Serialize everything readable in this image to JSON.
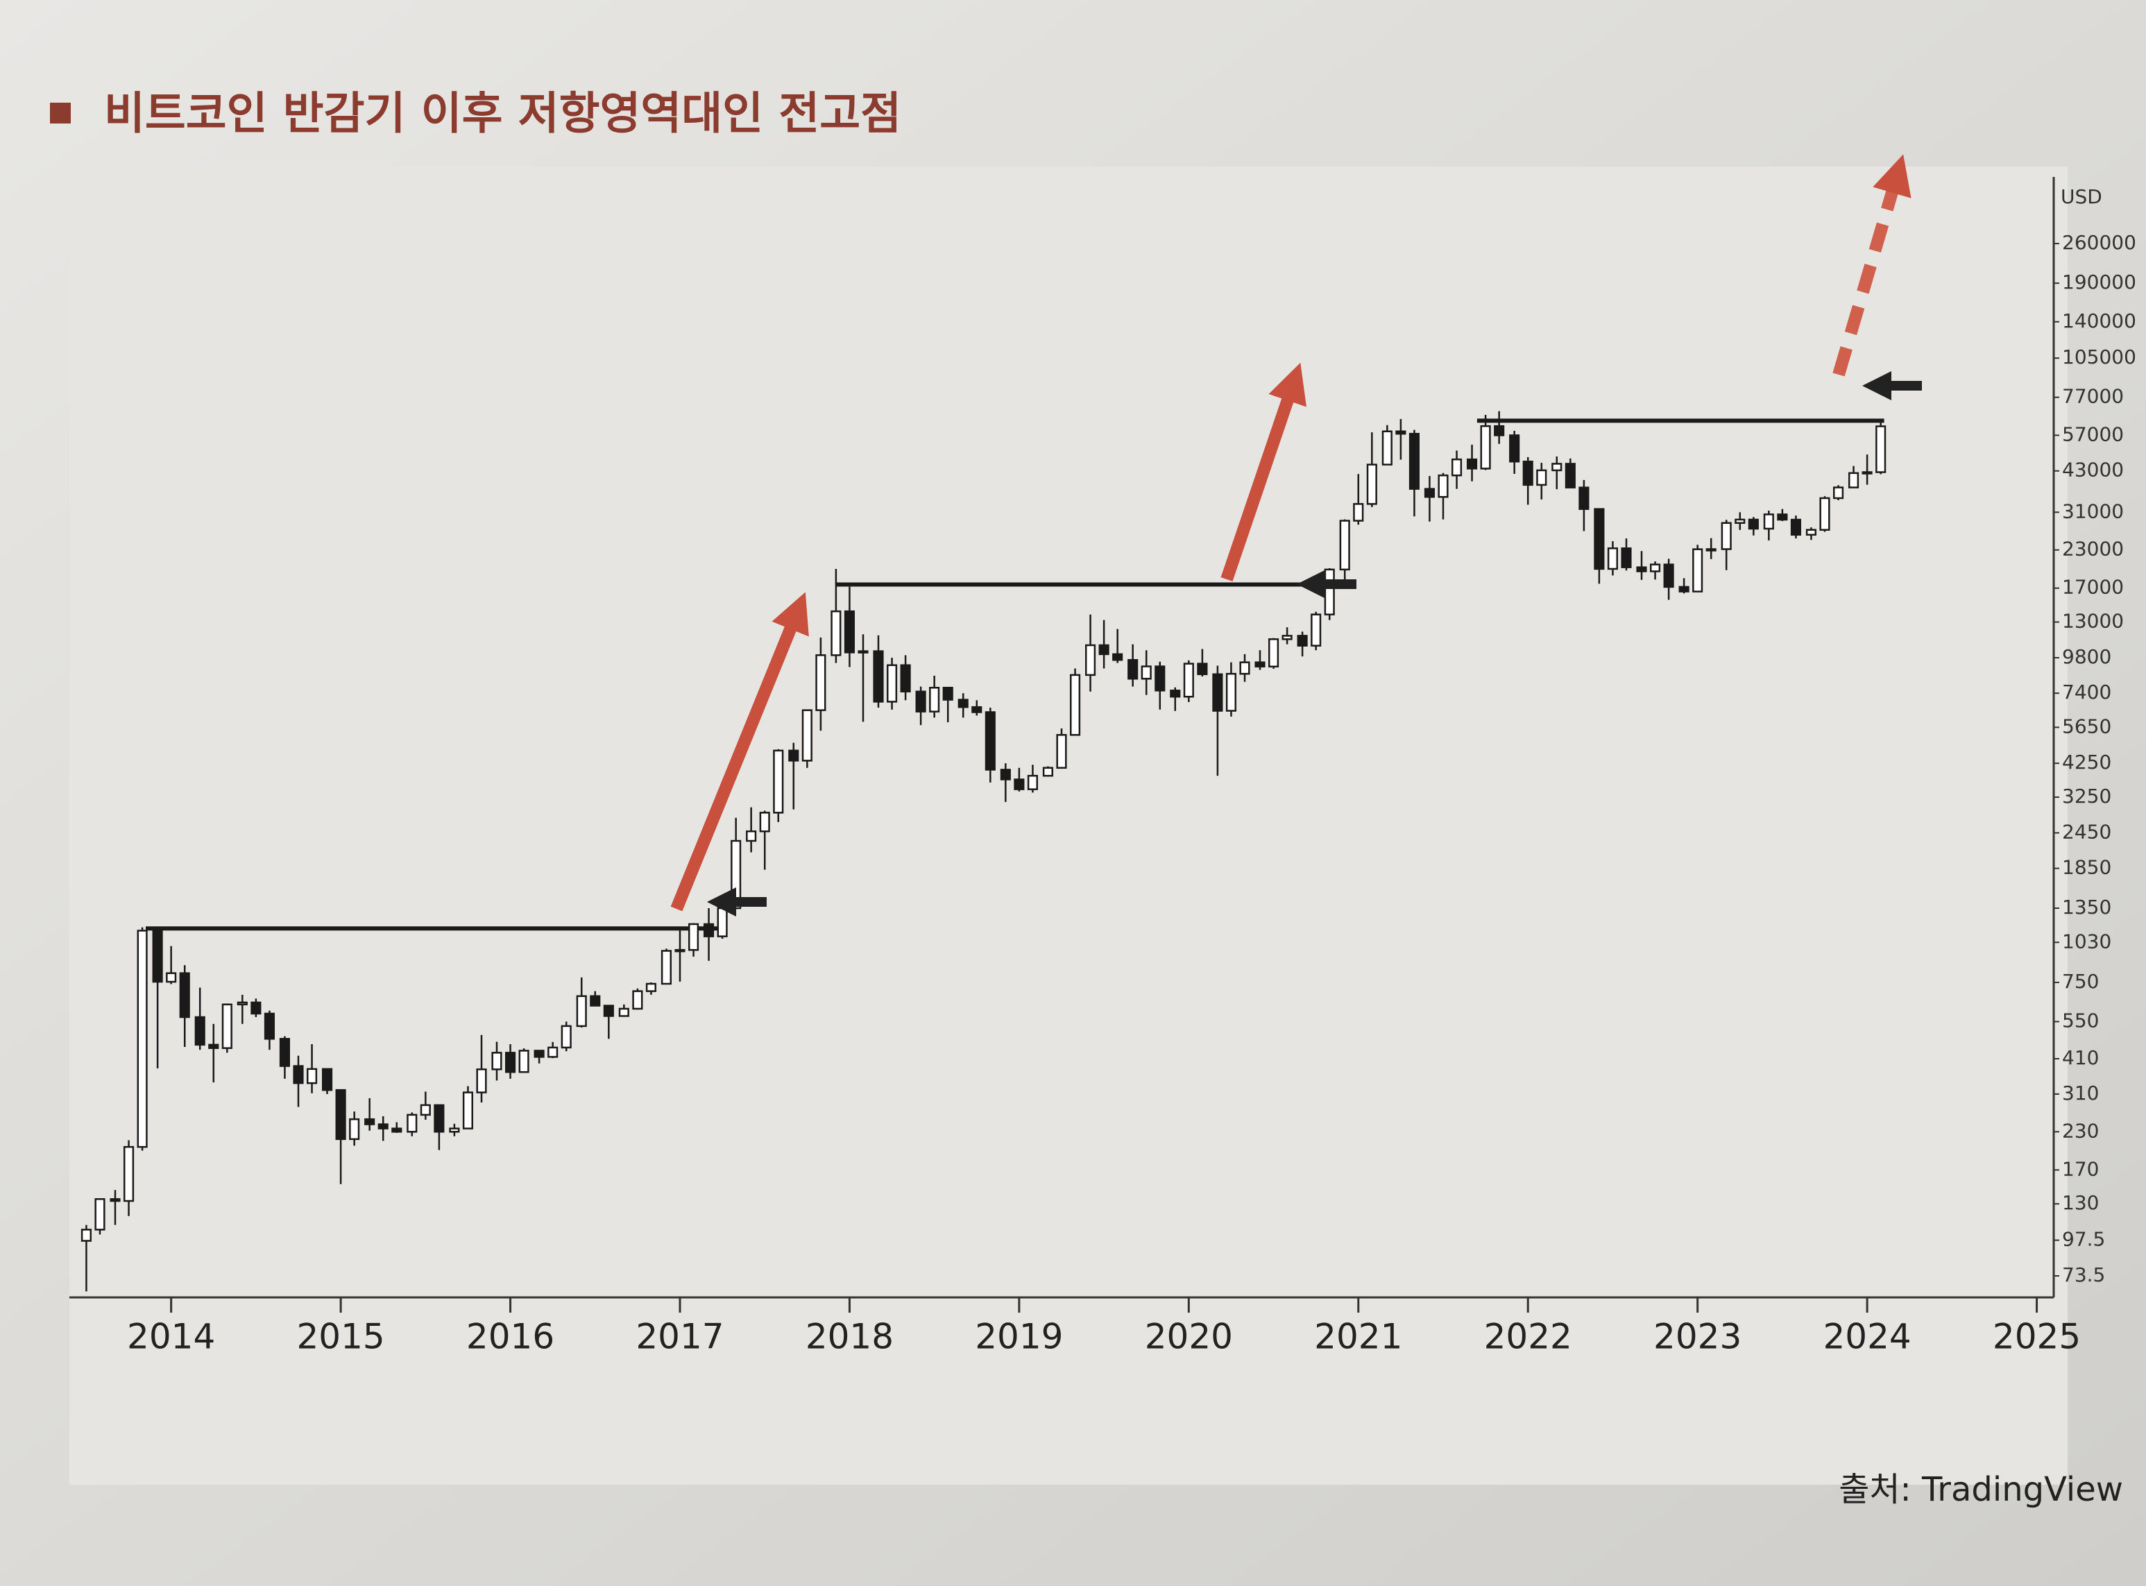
{
  "chart_data": {
    "type": "candlestick",
    "title": "비트코인 반감기 이후 저항영역대인 전고점",
    "source": "출처: TradingView",
    "y_unit": "USD",
    "log_scale": true,
    "up_color": "#ffffff",
    "down_color": "#1a1a1a",
    "line_color": "#1a1a1a",
    "x": [
      2013.5,
      2013.58,
      2013.67,
      2013.75,
      2013.83,
      2013.92,
      2014.0,
      2014.08,
      2014.17,
      2014.25,
      2014.33,
      2014.42,
      2014.5,
      2014.58,
      2014.67,
      2014.75,
      2014.83,
      2014.92,
      2015.0,
      2015.08,
      2015.17,
      2015.25,
      2015.33,
      2015.42,
      2015.5,
      2015.58,
      2015.67,
      2015.75,
      2015.83,
      2015.92,
      2016.0,
      2016.08,
      2016.17,
      2016.25,
      2016.33,
      2016.42,
      2016.5,
      2016.58,
      2016.67,
      2016.75,
      2016.83,
      2016.92,
      2017.0,
      2017.08,
      2017.17,
      2017.25,
      2017.33,
      2017.42,
      2017.5,
      2017.58,
      2017.67,
      2017.75,
      2017.83,
      2017.92,
      2018.0,
      2018.08,
      2018.17,
      2018.25,
      2018.33,
      2018.42,
      2018.5,
      2018.58,
      2018.67,
      2018.75,
      2018.83,
      2018.92,
      2019.0,
      2019.08,
      2019.17,
      2019.25,
      2019.33,
      2019.42,
      2019.5,
      2019.58,
      2019.67,
      2019.75,
      2019.83,
      2019.92,
      2020.0,
      2020.08,
      2020.17,
      2020.25,
      2020.33,
      2020.42,
      2020.5,
      2020.58,
      2020.67,
      2020.75,
      2020.83,
      2020.92,
      2021.0,
      2021.08,
      2021.17,
      2021.25,
      2021.33,
      2021.42,
      2021.5,
      2021.58,
      2021.67,
      2021.75,
      2021.83,
      2021.92,
      2022.0,
      2022.08,
      2022.17,
      2022.25,
      2022.33,
      2022.42,
      2022.5,
      2022.58,
      2022.67,
      2022.75,
      2022.83,
      2022.92,
      2023.0,
      2023.08,
      2023.17,
      2023.25,
      2023.33,
      2023.42,
      2023.5,
      2023.58,
      2023.67,
      2023.75,
      2023.83,
      2023.92,
      2024.0,
      2024.08
    ],
    "open": [
      97,
      106,
      135,
      133,
      204,
      1130,
      754,
      807,
      570,
      458,
      446,
      630,
      640,
      586,
      480,
      387,
      338,
      378,
      320,
      217,
      254,
      244,
      236,
      230,
      263,
      284,
      230,
      236,
      314,
      377,
      430,
      369,
      437,
      416,
      448,
      531,
      673,
      624,
      575,
      609,
      700,
      742,
      963,
      970,
      1190,
      1080,
      1350,
      2300,
      2480,
      2875,
      4700,
      4340,
      6470,
      10000,
      14150,
      10220,
      10320,
      6920,
      9240,
      7500,
      6400,
      7730,
      7030,
      6630,
      6370,
      4040,
      3740,
      3460,
      3850,
      4100,
      5320,
      8550,
      10820,
      10080,
      9630,
      8300,
      9150,
      7560,
      7200,
      9350,
      8600,
      6440,
      8630,
      9450,
      9140,
      11350,
      11660,
      10780,
      13800,
      19700,
      28990,
      33100,
      45200,
      58800,
      57700,
      37300,
      35000,
      41500,
      47100,
      43800,
      61300,
      57000,
      46300,
      38500,
      43200,
      45500,
      37700,
      31800,
      19800,
      23300,
      20050,
      19420,
      20500,
      17170,
      16550,
      23130,
      23150,
      28480,
      29250,
      27220,
      30480,
      29230,
      25940,
      26970,
      34660,
      37720,
      42270,
      42580
    ],
    "high": [
      110,
      135,
      145,
      215,
      1160,
      1163,
      1000,
      860,
      720,
      540,
      635,
      680,
      660,
      600,
      490,
      420,
      460,
      380,
      320,
      270,
      300,
      260,
      248,
      268,
      316,
      285,
      245,
      330,
      495,
      469,
      460,
      445,
      438,
      468,
      550,
      780,
      700,
      625,
      630,
      715,
      750,
      980,
      1160,
      1200,
      1350,
      1380,
      2760,
      3000,
      2920,
      4750,
      5000,
      6470,
      11500,
      19800,
      17200,
      11800,
      11700,
      9800,
      10000,
      7800,
      8500,
      7760,
      7400,
      7000,
      6600,
      4250,
      4100,
      4200,
      4150,
      5600,
      9000,
      13800,
      13200,
      12300,
      10900,
      10400,
      9500,
      7750,
      9600,
      10500,
      9200,
      9450,
      10080,
      10400,
      11450,
      12470,
      12050,
      14100,
      19900,
      29300,
      41950,
      58350,
      61780,
      64850,
      59500,
      41300,
      42300,
      50500,
      52900,
      67000,
      69000,
      59050,
      47950,
      45850,
      48200,
      47450,
      40000,
      31950,
      24650,
      25200,
      22800,
      21000,
      21450,
      18400,
      23950,
      25250,
      29200,
      31000,
      29850,
      31400,
      31800,
      30200,
      27500,
      35200,
      38400,
      44700,
      48950,
      63900
    ],
    "low": [
      65,
      102,
      110,
      118,
      198,
      380,
      740,
      450,
      440,
      340,
      430,
      540,
      570,
      440,
      350,
      280,
      312,
      310,
      152,
      206,
      232,
      214,
      228,
      222,
      253,
      199,
      222,
      236,
      290,
      345,
      350,
      368,
      395,
      412,
      435,
      525,
      640,
      480,
      574,
      605,
      680,
      740,
      755,
      920,
      890,
      1060,
      1340,
      2100,
      1830,
      2670,
      2950,
      4100,
      5500,
      9400,
      9100,
      5900,
      6600,
      6500,
      7000,
      5750,
      6100,
      5880,
      6100,
      6200,
      3650,
      3130,
      3400,
      3370,
      3830,
      4070,
      5300,
      7500,
      9000,
      9400,
      7800,
      7300,
      6500,
      6430,
      6900,
      8450,
      3850,
      6150,
      8100,
      8900,
      8980,
      10900,
      9900,
      10400,
      13200,
      17600,
      28100,
      32300,
      45000,
      47000,
      30000,
      28800,
      29300,
      37300,
      39600,
      43300,
      53250,
      42000,
      32900,
      34300,
      37200,
      37600,
      26700,
      17600,
      18800,
      19550,
      18150,
      18200,
      15500,
      16300,
      16500,
      21400,
      19600,
      26950,
      25800,
      24800,
      28900,
      25200,
      24900,
      26550,
      34100,
      37600,
      38550,
      41900
    ],
    "close": [
      106,
      135,
      133,
      204,
      1130,
      754,
      807,
      570,
      458,
      446,
      630,
      640,
      586,
      480,
      387,
      338,
      378,
      320,
      217,
      254,
      244,
      236,
      230,
      263,
      284,
      230,
      236,
      314,
      377,
      430,
      369,
      437,
      416,
      448,
      531,
      673,
      624,
      575,
      609,
      700,
      742,
      963,
      970,
      1190,
      1080,
      1350,
      2300,
      2480,
      2875,
      4700,
      4340,
      6470,
      10000,
      14150,
      10220,
      10320,
      6920,
      9240,
      7500,
      6400,
      7730,
      7030,
      6630,
      6370,
      4040,
      3740,
      3460,
      3850,
      4100,
      5320,
      8550,
      10820,
      10080,
      9630,
      8300,
      9150,
      7560,
      7200,
      9350,
      8600,
      6440,
      8630,
      9450,
      9140,
      11350,
      11660,
      10780,
      13800,
      19700,
      28990,
      33100,
      45200,
      58800,
      57700,
      37300,
      35000,
      41500,
      47100,
      43800,
      61300,
      57000,
      46300,
      38500,
      43200,
      45500,
      37700,
      31800,
      19800,
      23300,
      20050,
      19420,
      20500,
      17170,
      16550,
      23130,
      23150,
      28480,
      29250,
      27220,
      30480,
      29230,
      25940,
      26970,
      34660,
      37720,
      42270,
      42580,
      61200
    ],
    "resistance_lines": [
      {
        "x": [
          2013.85,
          2017.25
        ],
        "y": 1150
      },
      {
        "x": [
          2017.92,
          2020.9
        ],
        "y": 17500
      },
      {
        "x": [
          2021.7,
          2024.1
        ],
        "y": 64000
      }
    ],
    "xlim": [
      2013.4,
      2025.1
    ],
    "xticks": [
      2014,
      2015,
      2016,
      2017,
      2018,
      2019,
      2020,
      2021,
      2022,
      2023,
      2024,
      2025
    ],
    "ylim": [
      62,
      300000
    ],
    "yticks": [
      73.5,
      97.5,
      130,
      170,
      230,
      310,
      410,
      550,
      750,
      1030,
      1350,
      1850,
      2450,
      3250,
      4250,
      5650,
      7400,
      9800,
      13000,
      17000,
      23000,
      31000,
      43000,
      57000,
      77000,
      105000,
      140000,
      190000,
      260000
    ]
  }
}
